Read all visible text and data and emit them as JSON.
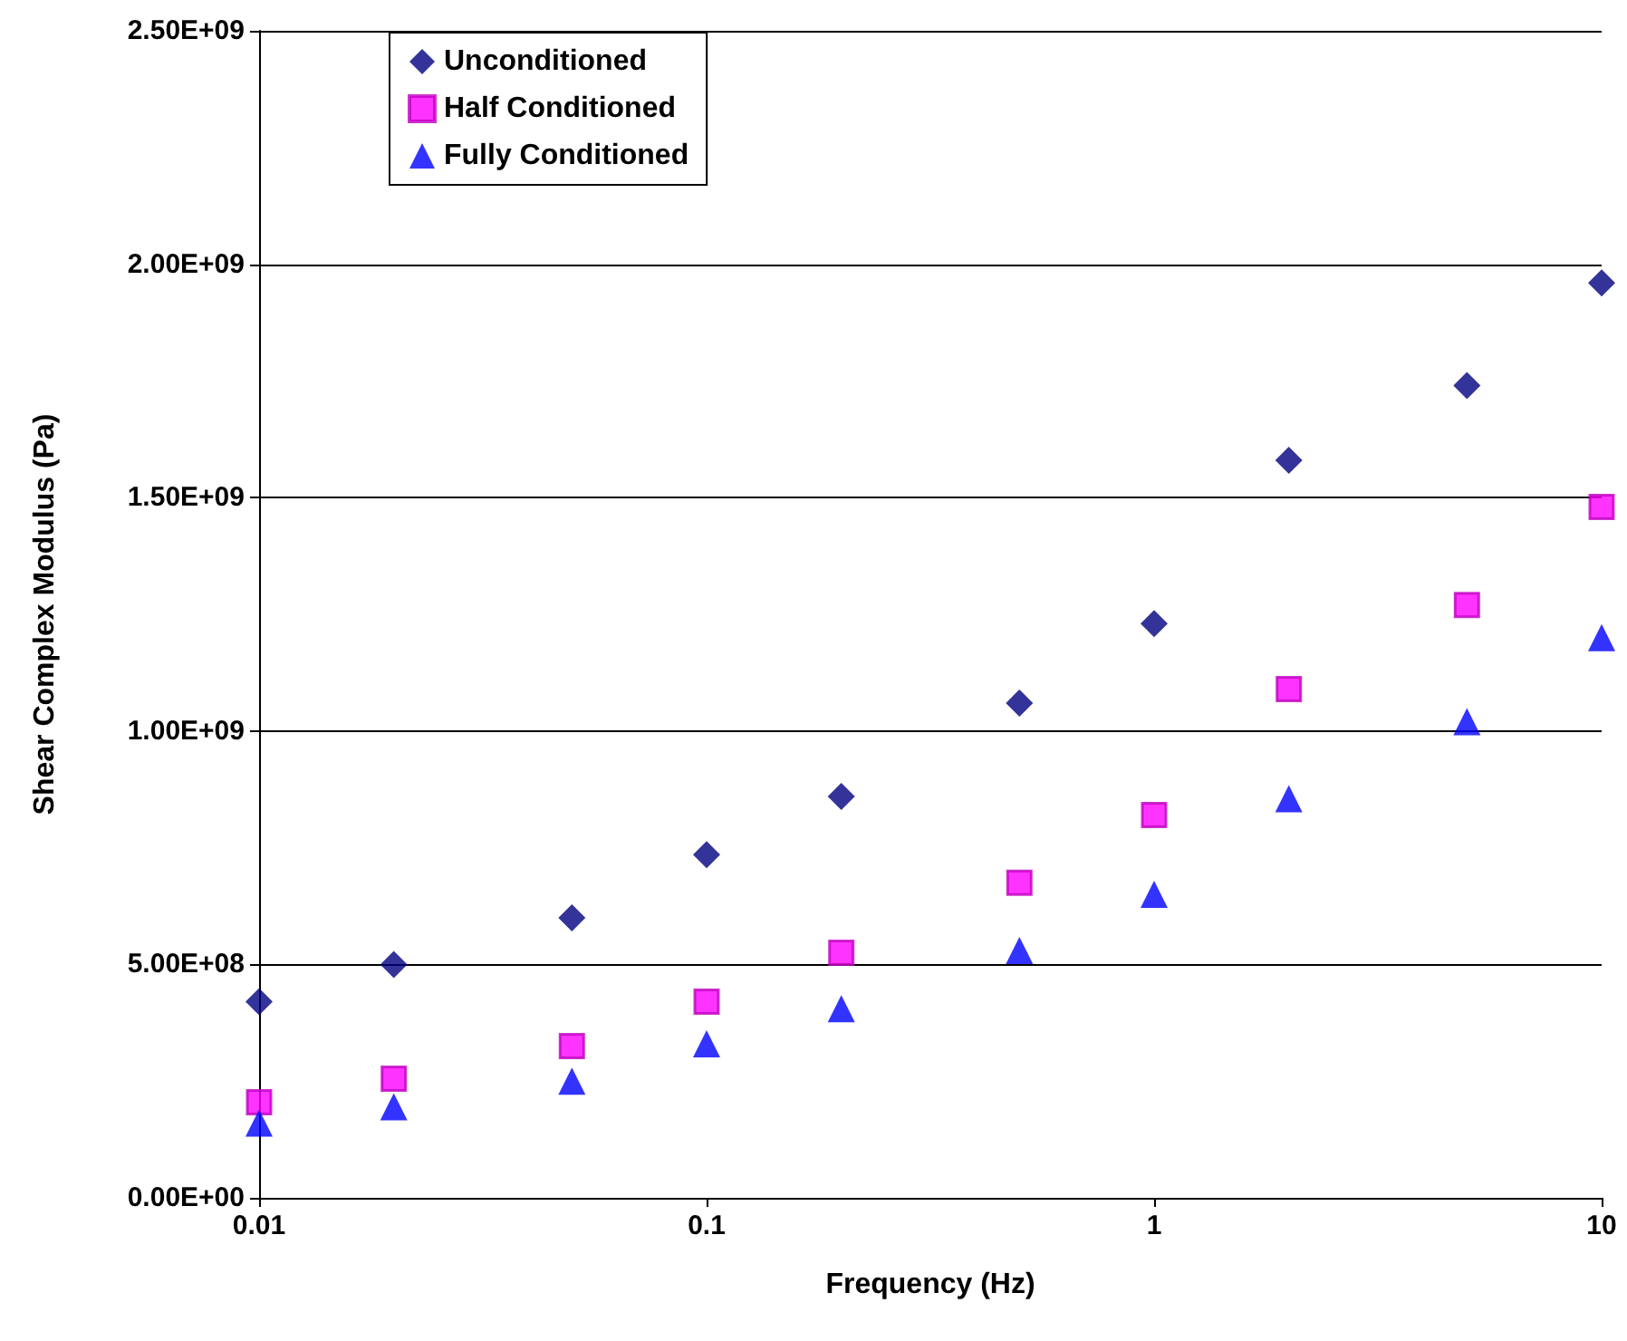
{
  "chart_data": {
    "type": "scatter",
    "xlabel": "Frequency (Hz)",
    "ylabel": "Shear Complex Modulus (Pa)",
    "x": [
      0.01,
      0.02,
      0.05,
      0.1,
      0.2,
      0.5,
      1,
      2,
      5,
      10
    ],
    "series": [
      {
        "name": "Unconditioned",
        "color": "#000080",
        "marker": "diamond",
        "values": [
          420000000.0,
          500000000.0,
          600000000.0,
          735000000.0,
          860000000.0,
          1060000000.0,
          1230000000.0,
          1580000000.0,
          1740000000.0,
          1960000000.0
        ]
      },
      {
        "name": "Half Conditioned",
        "color": "#ff00ff",
        "marker": "square",
        "values": [
          205000000.0,
          255000000.0,
          325000000.0,
          420000000.0,
          525000000.0,
          675000000.0,
          820000000.0,
          1090000000.0,
          1270000000.0,
          1480000000.0
        ]
      },
      {
        "name": "Fully Conditioned",
        "color": "#0000ff",
        "marker": "triangle",
        "values": [
          160000000.0,
          195000000.0,
          250000000.0,
          330000000.0,
          405000000.0,
          530000000.0,
          650000000.0,
          855000000.0,
          1020000000.0,
          1200000000.0
        ]
      }
    ],
    "log": "x",
    "xlim": [
      0.01,
      10
    ],
    "xticks": [
      0.01,
      0.1,
      1,
      10
    ],
    "ylim": [
      0,
      2500000000.0
    ],
    "yticks": [
      {
        "value": 0,
        "label": "0.00E+00"
      },
      {
        "value": 500000000.0,
        "label": "5.00E+08"
      },
      {
        "value": 1000000000.0,
        "label": "1.00E+09"
      },
      {
        "value": 1500000000.0,
        "label": "1.50E+09"
      },
      {
        "value": 2000000000.0,
        "label": "2.00E+09"
      },
      {
        "value": 2500000000.0,
        "label": "2.50E+09"
      }
    ],
    "grid": "y",
    "legend": "top left"
  }
}
